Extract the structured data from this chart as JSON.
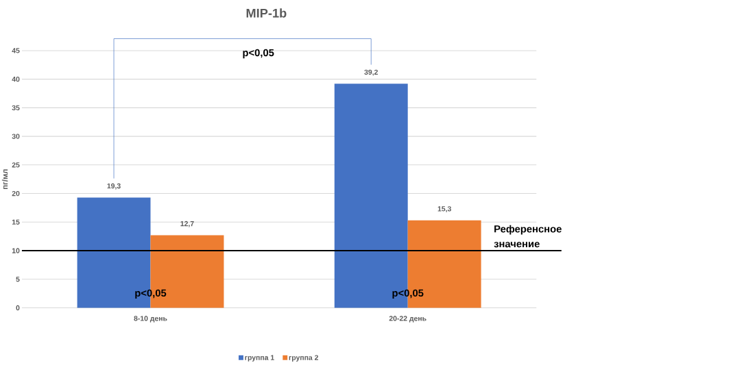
{
  "chart_data": {
    "type": "bar",
    "title": "MIP-1b",
    "ylabel": "пг/мл",
    "categories": [
      "8-10 день",
      "20-22 день"
    ],
    "series": [
      {
        "name": "группа 1",
        "color": "#4472c4",
        "values": [
          19.3,
          39.2
        ],
        "value_labels": [
          "19,3",
          "39,2"
        ]
      },
      {
        "name": "группа 2",
        "color": "#ed7d31",
        "values": [
          12.7,
          15.3
        ],
        "value_labels": [
          "12,7",
          "15,3"
        ]
      }
    ],
    "ylim": [
      0,
      45
    ],
    "yticks": [
      0,
      5,
      10,
      15,
      20,
      25,
      30,
      35,
      40,
      45
    ],
    "grid": "y",
    "legend": "bottom",
    "ref_lines": [
      {
        "axis": "y",
        "value": 10,
        "label": "Референсное значение",
        "color": "#000000"
      }
    ],
    "annotations": [
      "p<0,05",
      "p<0,05",
      "p<0,05"
    ]
  }
}
